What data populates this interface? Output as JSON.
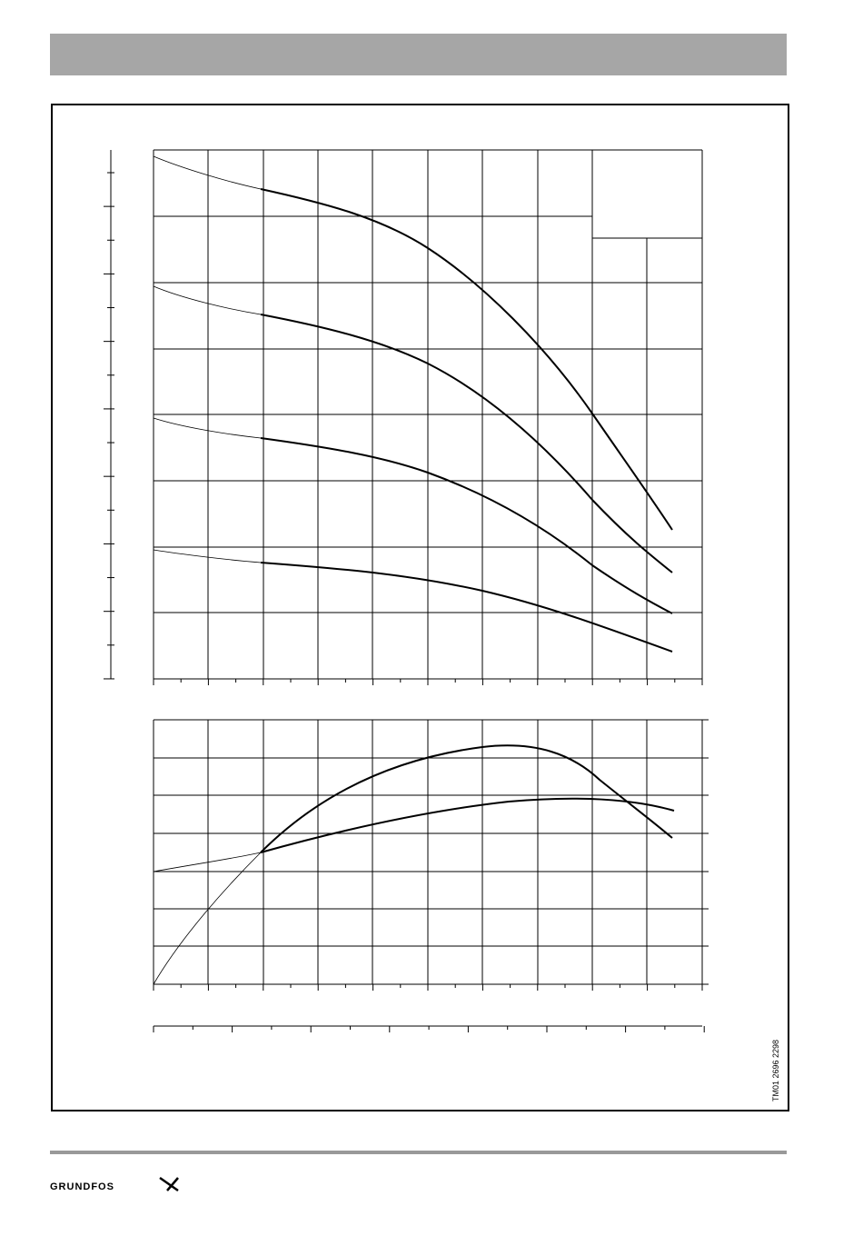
{
  "figure": {
    "code": "TM01 2696 2298"
  },
  "footer": {
    "brand": "GRUNDFOS"
  }
}
